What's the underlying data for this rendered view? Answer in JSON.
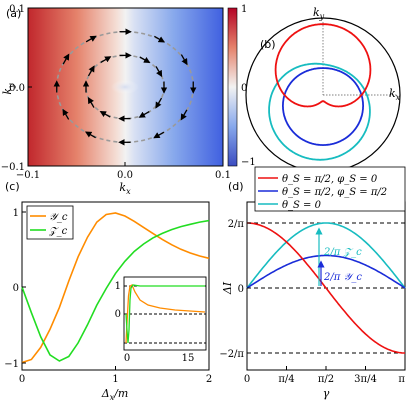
{
  "chart_data": [
    {
      "id": "a",
      "panel_label": "(a)",
      "type": "heatmap",
      "xlabel": "k_x",
      "ylabel": "k_y",
      "xlim": [
        -0.1,
        0.1
      ],
      "ylim": [
        -0.1,
        0.1
      ],
      "xticks": [
        "−0.1",
        "0.0",
        "0.1"
      ],
      "yticks": [
        "0.1",
        "0.0",
        "−0.1"
      ],
      "colorbar": {
        "range": [
          -1,
          1
        ],
        "ticks": [
          "1",
          "0",
          "−1"
        ],
        "colors": [
          "#b40426",
          "#f7f7f7",
          "#3b4cc0"
        ]
      },
      "rings": [
        0.04,
        0.07
      ],
      "arrows_note": "spin texture arrows circulating clockwise around origin",
      "grid": false
    },
    {
      "id": "b",
      "panel_label": "(b)",
      "type": "line",
      "subtype": "polar",
      "xlabel": "k_x",
      "ylabel": "k_y",
      "series": [
        {
          "name": "red",
          "color": "#ee1111"
        },
        {
          "name": "blue",
          "color": "#1a2cd8"
        },
        {
          "name": "cyan",
          "color": "#17bcc0"
        }
      ],
      "outer_circle": true
    },
    {
      "id": "c",
      "panel_label": "(c)",
      "type": "line",
      "xlabel": "Δ_x/m",
      "xlim": [
        0,
        2
      ],
      "ylim": [
        -1.1,
        1.1
      ],
      "xticks": [
        "0",
        "1",
        "2"
      ],
      "yticks": [
        "1",
        "0",
        "−1"
      ],
      "legend": [
        "𝒴_c",
        "𝒵_c"
      ],
      "legend_position": "top-left",
      "series": [
        {
          "name": "Yc",
          "color": "#ff8c00",
          "x": [
            0,
            0.1,
            0.2,
            0.3,
            0.4,
            0.5,
            0.6,
            0.7,
            0.8,
            0.9,
            1.0,
            1.1,
            1.2,
            1.3,
            1.4,
            1.5,
            1.6,
            1.7,
            1.8,
            1.9,
            2.0
          ],
          "values": [
            -1.0,
            -0.96,
            -0.8,
            -0.56,
            -0.27,
            0.08,
            0.4,
            0.66,
            0.86,
            0.96,
            0.98,
            0.94,
            0.87,
            0.79,
            0.71,
            0.63,
            0.56,
            0.5,
            0.45,
            0.41,
            0.38
          ]
        },
        {
          "name": "Zc",
          "color": "#22dd22",
          "x": [
            0,
            0.1,
            0.2,
            0.3,
            0.4,
            0.5,
            0.6,
            0.7,
            0.8,
            0.9,
            1.0,
            1.1,
            1.2,
            1.3,
            1.4,
            1.5,
            1.6,
            1.7,
            1.8,
            1.9,
            2.0
          ],
          "values": [
            0.0,
            -0.34,
            -0.66,
            -0.9,
            -0.98,
            -0.92,
            -0.74,
            -0.5,
            -0.24,
            -0.02,
            0.18,
            0.34,
            0.47,
            0.57,
            0.65,
            0.71,
            0.76,
            0.8,
            0.83,
            0.86,
            0.88
          ]
        }
      ],
      "inset": {
        "xlim": [
          0,
          20
        ],
        "ylim": [
          -1.1,
          1.1
        ],
        "xticks": [
          "0",
          "15"
        ],
        "yticks": [
          "1",
          "0",
          "−1"
        ],
        "dashed_levels": [
          1,
          0,
          -1
        ]
      }
    },
    {
      "id": "d",
      "panel_label": "(d)",
      "type": "line",
      "xlabel": "γ",
      "ylabel": "ΔI",
      "xlim": [
        0,
        3.1416
      ],
      "ylim": [
        -0.8,
        0.8
      ],
      "xticks": [
        "0",
        "π/4",
        "π/2",
        "3π/4",
        "π"
      ],
      "yticks": [
        "2/π",
        "0",
        "−2/π"
      ],
      "legend": [
        "θ_S = π/2, φ_S = 0",
        "θ_S = π/2, φ_S = π/2",
        "θ_S = 0"
      ],
      "legend_position": "top",
      "series": [
        {
          "name": "red",
          "color": "#ee1111",
          "kind": "cos",
          "amplitude": 0.6366
        },
        {
          "name": "blue",
          "color": "#1a2cd8",
          "kind": "sin",
          "amplitude": 0.3183
        },
        {
          "name": "cyan",
          "color": "#17bcc0",
          "kind": "sin",
          "amplitude": 0.6366
        }
      ],
      "dashed_levels": [
        0.6366,
        0,
        -0.6366
      ],
      "annotations": [
        "2/π 𝒵_c",
        "2/π 𝒴_c"
      ]
    }
  ]
}
